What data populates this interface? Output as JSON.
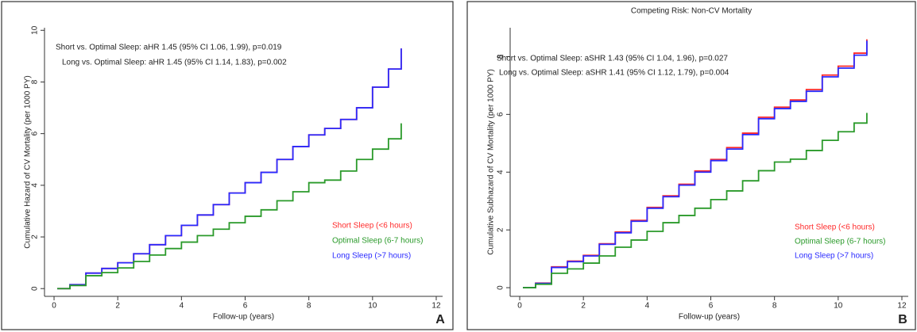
{
  "chart_data": [
    {
      "type": "line",
      "panel_label": "A",
      "annotations": [
        "Short vs. Optimal Sleep: aHR 1.45 (95% CI 1.06, 1.99), p=0.019",
        "Long vs. Optimal Sleep: aHR 1.45 (95% CI 1.14, 1.83), p=0.002"
      ],
      "xlabel": "Follow-up (years)",
      "ylabel": "Cumulative Hazard of CV Mortality (per 1000 PY)",
      "xlim": [
        -0.3,
        12.2
      ],
      "ylim": [
        -0.3,
        10.1
      ],
      "xticks": [
        0,
        2,
        4,
        6,
        8,
        10,
        12
      ],
      "yticks": [
        0,
        2,
        4,
        6,
        8,
        10
      ],
      "x": [
        0.1,
        0.5,
        1,
        1.5,
        2,
        2.5,
        3,
        3.5,
        4,
        4.5,
        5,
        5.5,
        6,
        6.5,
        7,
        7.5,
        8,
        8.5,
        9,
        9.5,
        10,
        10.5,
        10.9
      ],
      "series": [
        {
          "name": "Short Sleep (<6 hours)",
          "color": "#ff2a2a",
          "values": [
            0,
            0.15,
            0.6,
            0.78,
            1.0,
            1.35,
            1.7,
            2.05,
            2.45,
            2.85,
            3.25,
            3.7,
            4.1,
            4.5,
            5.0,
            5.5,
            5.95,
            6.2,
            6.55,
            7.0,
            7.8,
            8.5,
            9.3
          ]
        },
        {
          "name": "Optimal Sleep (6-7 hours)",
          "color": "#2a9a2a",
          "values": [
            0,
            0.12,
            0.5,
            0.62,
            0.8,
            1.05,
            1.3,
            1.55,
            1.8,
            2.05,
            2.3,
            2.55,
            2.8,
            3.05,
            3.4,
            3.75,
            4.1,
            4.2,
            4.55,
            5.0,
            5.4,
            5.8,
            6.4
          ]
        },
        {
          "name": "Long Sleep (>7 hours)",
          "color": "#2a2aff",
          "values": [
            0,
            0.15,
            0.6,
            0.78,
            1.0,
            1.35,
            1.7,
            2.05,
            2.45,
            2.85,
            3.25,
            3.7,
            4.1,
            4.5,
            5.0,
            5.5,
            5.95,
            6.2,
            6.55,
            7.0,
            7.8,
            8.5,
            9.3
          ]
        }
      ]
    },
    {
      "type": "line",
      "panel_label": "B",
      "title": "Competing Risk: Non-CV Mortality",
      "annotations": [
        "Short vs. Optimal Sleep: aSHR 1.43 (95% CI 1.04, 1.96), p=0.027",
        "Long vs. Optimal Sleep: aSHR 1.41 (95% CI 1.12, 1.79), p=0.004"
      ],
      "xlabel": "Follow-up (years)",
      "ylabel": "Cumulative Subhazard of CV Mortality (per 1000 PY)",
      "xlim": [
        -0.3,
        12.2
      ],
      "ylim": [
        -0.3,
        9.0
      ],
      "xticks": [
        0,
        2,
        4,
        6,
        8,
        10,
        12
      ],
      "yticks": [
        0,
        2,
        4,
        6,
        8
      ],
      "x": [
        0.1,
        0.5,
        1,
        1.5,
        2,
        2.5,
        3,
        3.5,
        4,
        4.5,
        5,
        5.5,
        6,
        6.5,
        7,
        7.5,
        8,
        8.5,
        9,
        9.5,
        10,
        10.5,
        10.9
      ],
      "series": [
        {
          "name": "Short Sleep (<6 hours)",
          "color": "#ff2a2a",
          "values": [
            0,
            0.16,
            0.72,
            0.92,
            1.12,
            1.52,
            1.93,
            2.33,
            2.78,
            3.18,
            3.58,
            4.04,
            4.44,
            4.85,
            5.35,
            5.9,
            6.25,
            6.5,
            6.86,
            7.36,
            7.67,
            8.12,
            8.6
          ]
        },
        {
          "name": "Optimal Sleep (6-7 hours)",
          "color": "#2a9a2a",
          "values": [
            0,
            0.12,
            0.5,
            0.65,
            0.85,
            1.1,
            1.4,
            1.65,
            1.95,
            2.25,
            2.5,
            2.75,
            3.05,
            3.35,
            3.7,
            4.05,
            4.35,
            4.45,
            4.75,
            5.1,
            5.4,
            5.7,
            6.05
          ]
        },
        {
          "name": "Long Sleep (>7 hours)",
          "color": "#2a2aff",
          "values": [
            0,
            0.15,
            0.7,
            0.9,
            1.1,
            1.5,
            1.9,
            2.3,
            2.75,
            3.15,
            3.55,
            4.0,
            4.4,
            4.8,
            5.3,
            5.85,
            6.2,
            6.45,
            6.8,
            7.3,
            7.6,
            8.05,
            8.55
          ]
        }
      ]
    }
  ]
}
